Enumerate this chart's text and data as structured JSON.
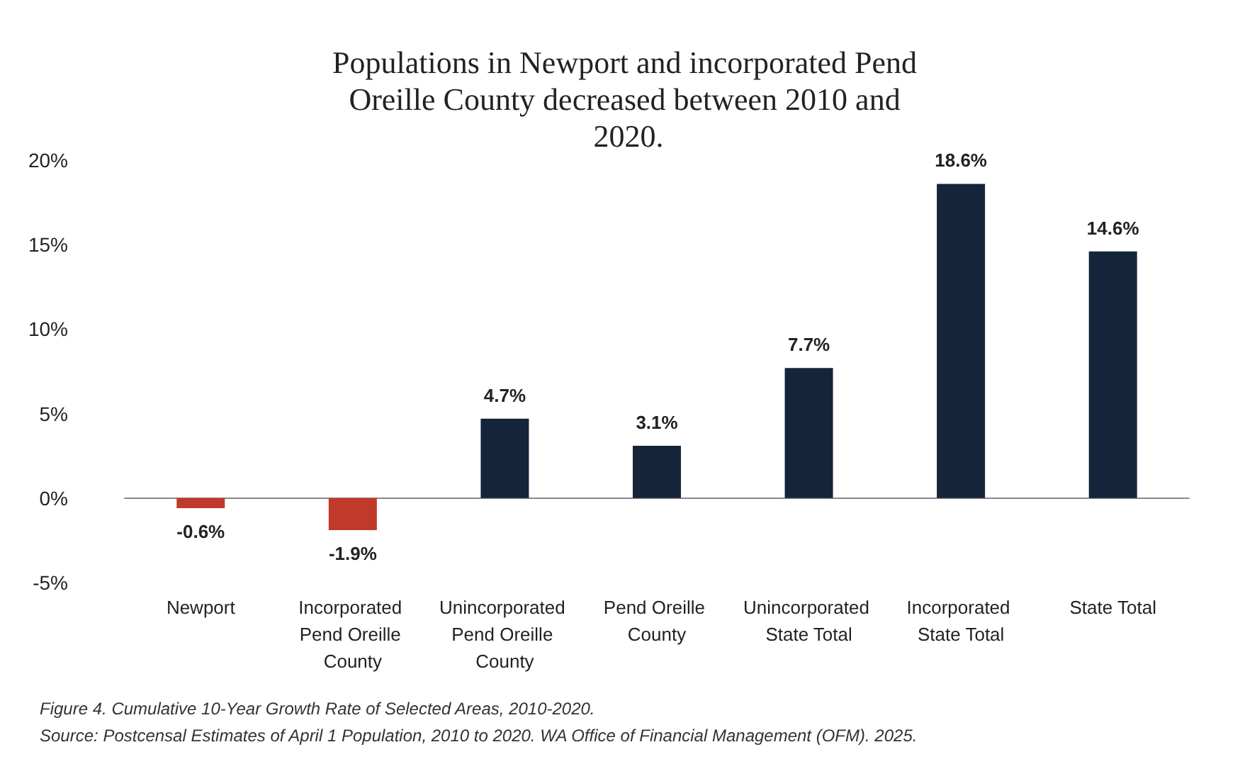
{
  "chart_data": {
    "type": "bar",
    "title": "Populations in Newport and incorporated Pend Oreille County decreased between 2010 and 2020.",
    "categories": [
      "Newport",
      "Incorporated Pend Oreille County",
      "Unincorporated Pend Oreille County",
      "Pend Oreille County",
      "Unincorporated State Total",
      "Incorporated State Total",
      "State Total"
    ],
    "values": [
      -0.6,
      -1.9,
      4.7,
      3.1,
      7.7,
      18.6,
      14.6
    ],
    "value_labels": [
      "-0.6%",
      "-1.9%",
      "4.7%",
      "3.1%",
      "7.7%",
      "18.6%",
      "14.6%"
    ],
    "colors": [
      "#c0392b",
      "#c0392b",
      "#14243a",
      "#14243a",
      "#14243a",
      "#14243a",
      "#14243a"
    ],
    "ylim": [
      -5,
      20
    ],
    "yticks": [
      {
        "value": -5,
        "label": "-5%"
      },
      {
        "value": 0,
        "label": "0%"
      },
      {
        "value": 5,
        "label": "5%"
      },
      {
        "value": 10,
        "label": "10%"
      },
      {
        "value": 15,
        "label": "15%"
      },
      {
        "value": 20,
        "label": "20%"
      }
    ],
    "annotations": [
      "Figure 4. Cumulative 10-Year Growth Rate of Selected Areas, 2010-2020.",
      "Source: Postcensal Estimates of April 1 Population, 2010 to 2020. WA Office of Financial Management (OFM). 2025."
    ]
  }
}
